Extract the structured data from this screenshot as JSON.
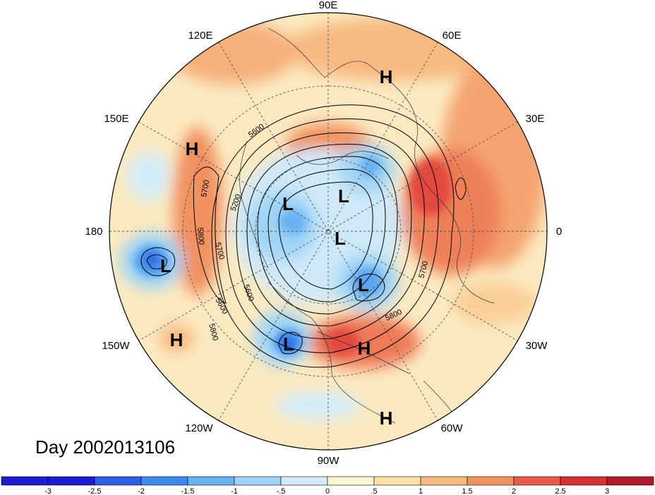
{
  "title": "Day 2002013106",
  "longitude_labels": [
    "90E",
    "60E",
    "30E",
    "0",
    "30W",
    "60W",
    "90W",
    "120W",
    "150W",
    "180",
    "150E",
    "120E"
  ],
  "height_contour_labels": [
    "5200",
    "5600",
    "5700",
    "5800",
    "5600",
    "5700",
    "5800",
    "5700",
    "5800",
    "5600"
  ],
  "pressure_centers": [
    {
      "type": "H",
      "label": "H"
    },
    {
      "type": "H",
      "label": "H"
    },
    {
      "type": "L",
      "label": "L"
    },
    {
      "type": "L",
      "label": "L"
    },
    {
      "type": "L",
      "label": "L"
    },
    {
      "type": "L",
      "label": "L"
    },
    {
      "type": "L",
      "label": "L"
    },
    {
      "type": "H",
      "label": "H"
    },
    {
      "type": "H",
      "label": "H"
    },
    {
      "type": "L",
      "label": "L"
    },
    {
      "type": "H",
      "label": "H"
    }
  ],
  "colorbar": {
    "ticks": [
      "-3",
      "-2.5",
      "-2",
      "-1.5",
      "-1",
      "-.5",
      "0",
      ".5",
      "1",
      "1.5",
      "2",
      "2.5",
      "3"
    ],
    "colors": [
      "#1b1bd6",
      "#2b5fe6",
      "#3f8cef",
      "#67b2f3",
      "#9fd4f6",
      "#d3ecfa",
      "#fbf7d4",
      "#fbe2a6",
      "#f7ba81",
      "#f1915f",
      "#ea5c46",
      "#d72f36",
      "#b3192a"
    ]
  }
}
